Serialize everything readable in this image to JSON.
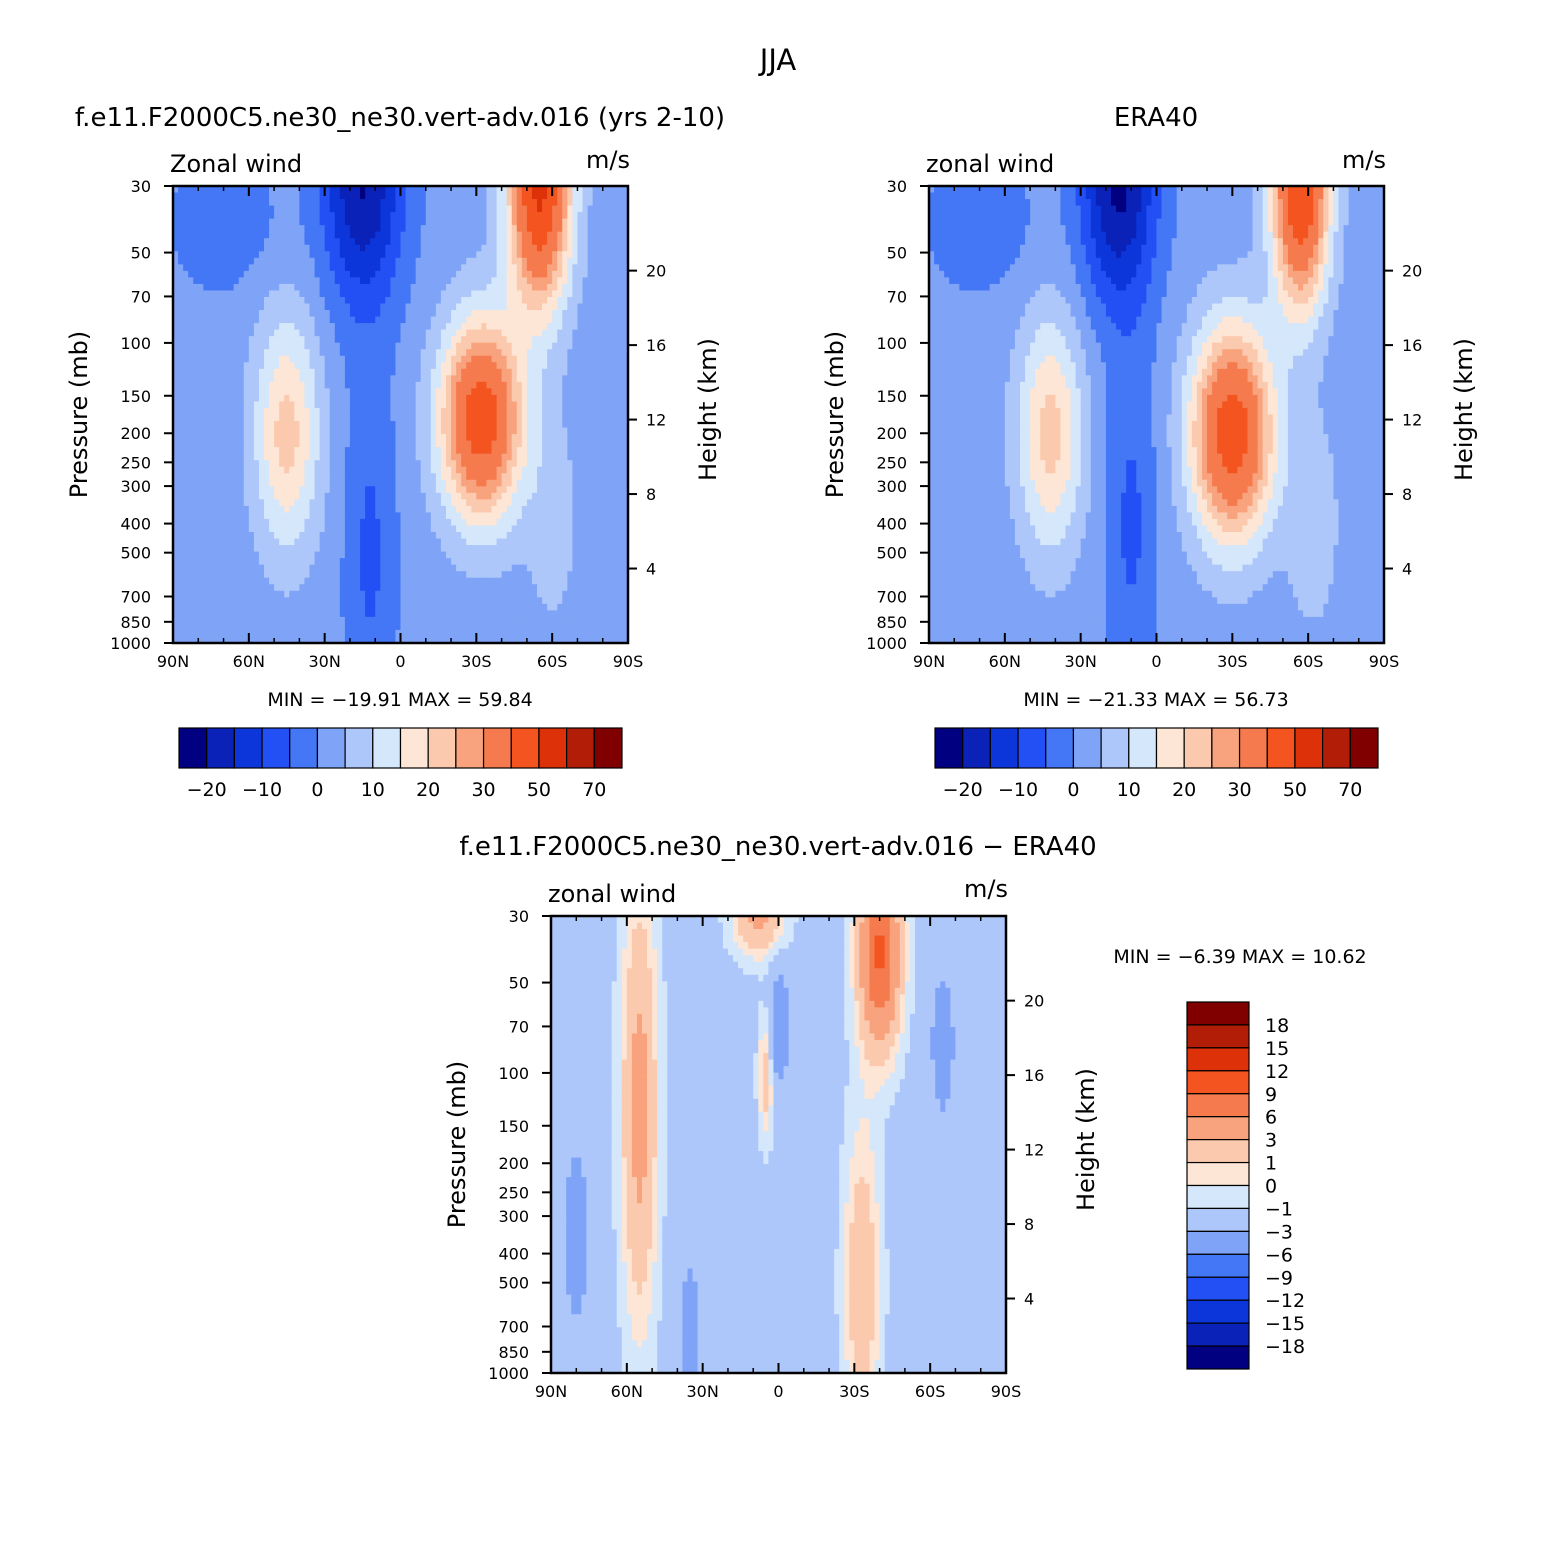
{
  "main_title": "JJA",
  "panels": [
    {
      "id": "model",
      "title": "f.e11.F2000C5.ne30_ne30.vert-adv.016 (yrs 2-10)",
      "left_label": "Zonal wind",
      "right_label": "m/s",
      "min_max": "MIN = −19.91   MAX =   59.84"
    },
    {
      "id": "obs",
      "title": "ERA40",
      "left_label": "zonal wind",
      "right_label": "m/s",
      "min_max": "MIN = −21.33   MAX =   56.73"
    },
    {
      "id": "diff",
      "title": "f.e11.F2000C5.ne30_ne30.vert-adv.016 − ERA40",
      "left_label": "zonal wind",
      "right_label": "m/s",
      "min_max": "MIN =   −6.39   MAX =   10.62"
    }
  ],
  "colorbar_main": {
    "colors": [
      "#000080",
      "#0a22b8",
      "#0c36da",
      "#2250f5",
      "#4477f6",
      "#7fa4f7",
      "#aec7fa",
      "#d5e7fb",
      "#fde6d5",
      "#fbcaae",
      "#f8a37d",
      "#f57a4d",
      "#f4541f",
      "#dd3209",
      "#b21d08",
      "#800000"
    ],
    "labels": [
      "−20",
      "−10",
      "0",
      "10",
      "20",
      "30",
      "50",
      "70"
    ]
  },
  "colorbar_diff": {
    "colors": [
      "#800000",
      "#b21d08",
      "#dd3209",
      "#f4541f",
      "#f57a4d",
      "#f8a37d",
      "#fbcaae",
      "#fde6d5",
      "#d5e7fb",
      "#aec7fa",
      "#7fa4f7",
      "#4477f6",
      "#2250f5",
      "#0c36da",
      "#0a22b8",
      "#000080"
    ],
    "labels": [
      "18",
      "15",
      "12",
      "9",
      "6",
      "3",
      "1",
      "0",
      "−1",
      "−3",
      "−6",
      "−9",
      "−12",
      "−15",
      "−18"
    ]
  },
  "chart_data": [
    {
      "type": "heatmap",
      "title": "f.e11.F2000C5.ne30_ne30.vert-adv.016 (yrs 2-10)",
      "variable": "Zonal wind",
      "units": "m/s",
      "xlabel": "",
      "ylabel": "Pressure (mb)",
      "y2label": "Height (km)",
      "x_ticks": [
        "90N",
        "60N",
        "30N",
        "0",
        "30S",
        "60S",
        "90S"
      ],
      "y_ticks": [
        30,
        50,
        70,
        100,
        150,
        200,
        250,
        300,
        400,
        500,
        700,
        850,
        1000
      ],
      "y2_ticks": [
        20,
        16,
        12,
        8,
        4
      ],
      "contour_levels": [
        -20,
        -15,
        -10,
        -5,
        0,
        5,
        10,
        15,
        20,
        25,
        30,
        40,
        50,
        60,
        70
      ],
      "min": -19.91,
      "max": 59.84,
      "features": [
        {
          "lat": 45,
          "p": 200,
          "u": 20
        },
        {
          "lat": -30,
          "p": 180,
          "u": 45
        },
        {
          "lat": -55,
          "p": 30,
          "u": 59.84
        },
        {
          "lat": 15,
          "p": 30,
          "u": -19.91
        }
      ]
    },
    {
      "type": "heatmap",
      "title": "ERA40",
      "variable": "zonal wind",
      "units": "m/s",
      "xlabel": "",
      "ylabel": "Pressure (mb)",
      "y2label": "Height (km)",
      "x_ticks": [
        "90N",
        "60N",
        "30N",
        "0",
        "30S",
        "60S",
        "90S"
      ],
      "y_ticks": [
        30,
        50,
        70,
        100,
        150,
        200,
        250,
        300,
        400,
        500,
        700,
        850,
        1000
      ],
      "y2_ticks": [
        20,
        16,
        12,
        8,
        4
      ],
      "contour_levels": [
        -20,
        -15,
        -10,
        -5,
        0,
        5,
        10,
        15,
        20,
        25,
        30,
        40,
        50,
        60,
        70
      ],
      "min": -21.33,
      "max": 56.73,
      "features": [
        {
          "lat": 42,
          "p": 200,
          "u": 20
        },
        {
          "lat": -30,
          "p": 200,
          "u": 45
        },
        {
          "lat": -57,
          "p": 30,
          "u": 56.73
        },
        {
          "lat": 15,
          "p": 30,
          "u": -21.33
        }
      ]
    },
    {
      "type": "heatmap",
      "title": "f.e11.F2000C5.ne30_ne30.vert-adv.016 − ERA40",
      "variable": "zonal wind",
      "units": "m/s",
      "xlabel": "",
      "ylabel": "Pressure (mb)",
      "y2label": "Height (km)",
      "x_ticks": [
        "90N",
        "60N",
        "30N",
        "0",
        "30S",
        "60S",
        "90S"
      ],
      "y_ticks": [
        30,
        50,
        70,
        100,
        150,
        200,
        250,
        300,
        400,
        500,
        700,
        850,
        1000
      ],
      "y2_ticks": [
        20,
        16,
        12,
        8,
        4
      ],
      "contour_levels": [
        -18,
        -15,
        -12,
        -9,
        -6,
        -3,
        -1,
        0,
        1,
        3,
        6,
        9,
        12,
        15,
        18
      ],
      "min": -6.39,
      "max": 10.62,
      "features": [
        {
          "lat": -40,
          "p": 40,
          "u": 10.62
        },
        {
          "lat": 55,
          "p": 130,
          "u": 4
        },
        {
          "lat": 80,
          "p": 350,
          "u": -5
        },
        {
          "lat": 0,
          "p": 70,
          "u": -6.39
        }
      ]
    }
  ]
}
